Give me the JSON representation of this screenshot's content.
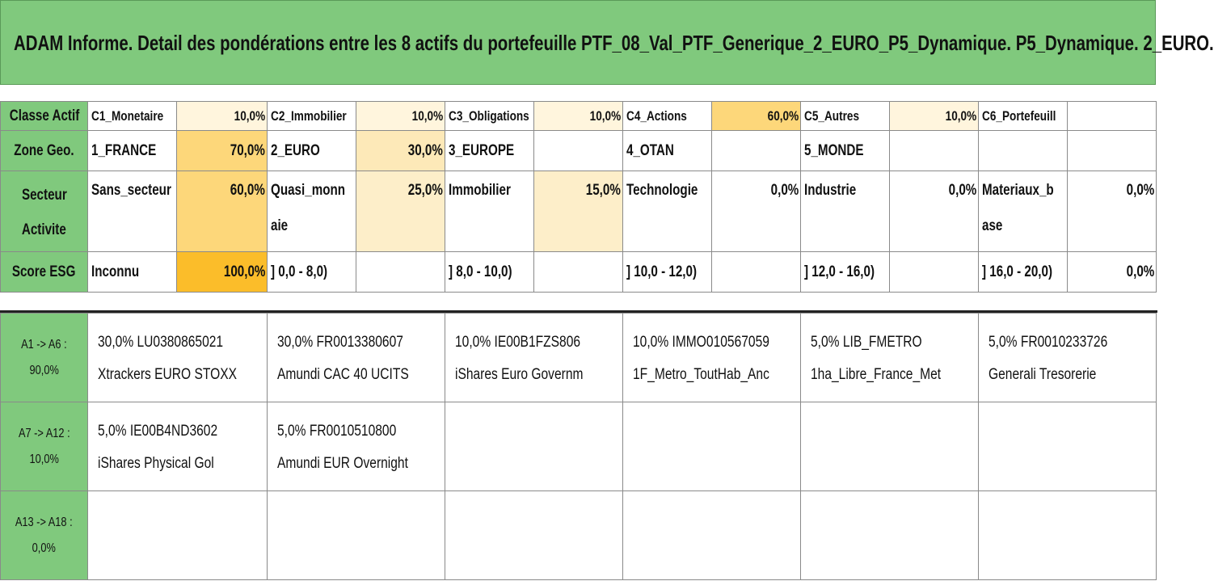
{
  "title": "ADAM Informe. Detail des pondérations entre les 8 actifs du portefeuille PTF_08_Val_PTF_Generique_2_EURO_P5_Dynamique. P5_Dynamique. 2_EURO.",
  "colors": {
    "header_green": "#80c97d",
    "heat_low": "#fff5dd",
    "heat_mid": "#fde9b8",
    "heat_high": "#fdd77a",
    "heat_max": "#fbbd2a"
  },
  "rows": {
    "classe": {
      "header": "Classe Actif",
      "cells": [
        {
          "label": "C1_Monetaire",
          "pct": "10,0%"
        },
        {
          "label": "C2_Immobilier",
          "pct": "10,0%"
        },
        {
          "label": "C3_Obligations",
          "pct": "10,0%"
        },
        {
          "label": "C4_Actions",
          "pct": "60,0%"
        },
        {
          "label": "C5_Autres",
          "pct": "10,0%"
        },
        {
          "label": "C6_Portefeuill",
          "pct": ""
        }
      ]
    },
    "zone": {
      "header": "Zone Geo.",
      "cells": [
        {
          "label": "1_FRANCE",
          "pct": "70,0%"
        },
        {
          "label": "2_EURO",
          "pct": "30,0%"
        },
        {
          "label": "3_EUROPE",
          "pct": ""
        },
        {
          "label": "4_OTAN",
          "pct": ""
        },
        {
          "label": "5_MONDE",
          "pct": ""
        },
        {
          "label": "",
          "pct": ""
        }
      ]
    },
    "secteur": {
      "header_line1": "Secteur",
      "header_line2": "Activite",
      "cells": [
        {
          "label": "Sans_secteur",
          "label2": "",
          "pct": "60,0%"
        },
        {
          "label": "Quasi_monn",
          "label2": "aie",
          "pct": "25,0%"
        },
        {
          "label": "Immobilier",
          "label2": "",
          "pct": "15,0%"
        },
        {
          "label": "Technologie",
          "label2": "",
          "pct": "0,0%"
        },
        {
          "label": "Industrie",
          "label2": "",
          "pct": "0,0%"
        },
        {
          "label": "Materiaux_b",
          "label2": "ase",
          "pct": "0,0%"
        }
      ]
    },
    "esg": {
      "header": "Score ESG",
      "cells": [
        {
          "label": "Inconnu",
          "pct": "100,0%"
        },
        {
          "label": "] 0,0 - 8,0)",
          "pct": ""
        },
        {
          "label": "] 8,0 - 10,0)",
          "pct": ""
        },
        {
          "label": "] 10,0 - 12,0)",
          "pct": ""
        },
        {
          "label": "] 12,0 - 16,0)",
          "pct": ""
        },
        {
          "label": "] 16,0 - 20,0)",
          "pct": "0,0%"
        }
      ]
    }
  },
  "asset_rows": [
    {
      "range": "A1 -> A6 :",
      "total": "90,0%",
      "assets": [
        {
          "line1": "30,0% LU0380865021",
          "line2": "Xtrackers EURO STOXX"
        },
        {
          "line1": "30,0% FR0013380607",
          "line2": "Amundi CAC 40 UCITS"
        },
        {
          "line1": "10,0% IE00B1FZS806",
          "line2": "iShares Euro Governm"
        },
        {
          "line1": "10,0% IMMO010567059",
          "line2": "1F_Metro_ToutHab_Anc"
        },
        {
          "line1": "5,0% LIB_FMETRO",
          "line2": "1ha_Libre_France_Met"
        },
        {
          "line1": "5,0% FR0010233726",
          "line2": "Generali Tresorerie"
        }
      ]
    },
    {
      "range": "A7 -> A12 :",
      "total": "10,0%",
      "assets": [
        {
          "line1": "5,0% IE00B4ND3602",
          "line2": "iShares Physical Gol"
        },
        {
          "line1": "5,0% FR0010510800",
          "line2": "Amundi EUR Overnight"
        },
        {
          "line1": "",
          "line2": ""
        },
        {
          "line1": "",
          "line2": ""
        },
        {
          "line1": "",
          "line2": ""
        },
        {
          "line1": "",
          "line2": ""
        }
      ]
    },
    {
      "range": "A13 -> A18 :",
      "total": "0,0%",
      "assets": [
        {
          "line1": "",
          "line2": ""
        },
        {
          "line1": "",
          "line2": ""
        },
        {
          "line1": "",
          "line2": ""
        },
        {
          "line1": "",
          "line2": ""
        },
        {
          "line1": "",
          "line2": ""
        },
        {
          "line1": "",
          "line2": ""
        }
      ]
    }
  ]
}
